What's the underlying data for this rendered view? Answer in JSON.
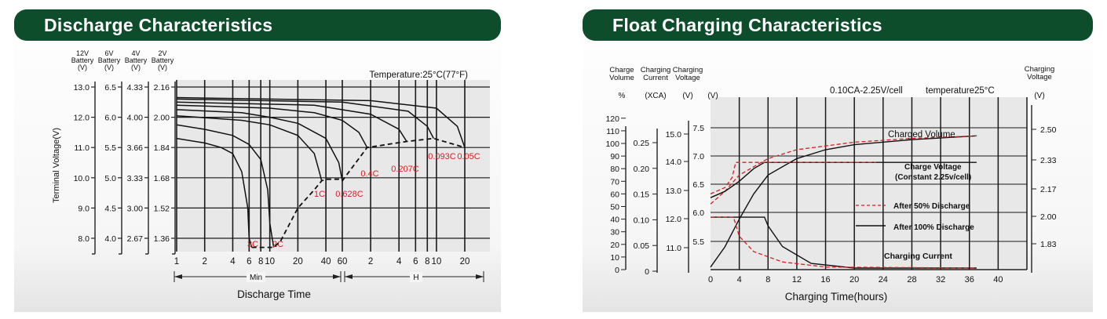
{
  "colors": {
    "banner": "#0e4d2c",
    "grid": "#1a1a1a",
    "plot_bg": "#e8e8e8",
    "red": "#d42020"
  },
  "discharge": {
    "title": "Discharge Characteristics",
    "temperature_label": "Temperature:25°C(77°F)",
    "y_axes": [
      {
        "label": "12V\nBattery\n(V)",
        "ticks": [
          "13.0",
          "12.0",
          "11.0",
          "10.0",
          "9.0",
          "8.0"
        ]
      },
      {
        "label": "6V\nBattery\n(V)",
        "ticks": [
          "6.5",
          "6.0",
          "5.5",
          "5.0",
          "4.5",
          "4.0"
        ]
      },
      {
        "label": "4V\nBattery\n(V)",
        "ticks": [
          "4.33",
          "4.00",
          "3.66",
          "3.33",
          "3.00",
          "2.67"
        ]
      },
      {
        "label": "2V\nBattery\n(V)",
        "ticks": [
          "2.16",
          "2.00",
          "1.84",
          "1.68",
          "1.52",
          "1.36"
        ]
      }
    ],
    "ylabel": "Terminal Voltage(V)",
    "xlabel": "Discharge Time",
    "x_ticks": [
      "1",
      "2",
      "4",
      "6",
      "8",
      "10",
      "20",
      "40",
      "60",
      "2",
      "4",
      "6",
      "8",
      "10",
      "20"
    ],
    "x_groups": [
      "Min",
      "H"
    ]
  },
  "float": {
    "title": "Float Charging Characteristics",
    "condition_label": "0.10CA-2.25V/cell",
    "temperature_label": "temperature25°C",
    "xlabel": "Charging Time(hours)",
    "x_ticks": [
      "0",
      "4",
      "8",
      "12",
      "16",
      "20",
      "24",
      "28",
      "32",
      "36",
      "40"
    ],
    "axis_headers": [
      {
        "title": "Charge\nVolume",
        "unit": "%"
      },
      {
        "title": "Charging\nCurrent",
        "unit": "(XCA)"
      },
      {
        "title": "Charging\nVoltage",
        "unit": "(V)"
      },
      {
        "title": "",
        "unit": "(V)"
      },
      {
        "title": "Charging\nVoltage",
        "unit": "(V)"
      }
    ],
    "volume_ticks": [
      "0",
      "10",
      "20",
      "30",
      "40",
      "50",
      "60",
      "70",
      "80",
      "90",
      "100",
      "110",
      "120"
    ],
    "current_ticks": [
      "0",
      "0.05",
      "0.10",
      "0.15",
      "0.20",
      "0.25"
    ],
    "voltage_ticks_a": [
      "11.0",
      "12.0",
      "13.0",
      "14.0",
      "15.0"
    ],
    "voltage_ticks_b": [
      "5.5",
      "6.0",
      "6.5",
      "7.0",
      "7.5"
    ],
    "voltage_ticks_right": [
      "1.83",
      "2.00",
      "2.17",
      "2.33",
      "2.50"
    ],
    "labels": {
      "charged_volume": "Charged Volume",
      "charge_voltage": "Charge Voltage",
      "charge_voltage_sub": "(Constant 2.25v/cell)",
      "after50": "After 50% Discharge",
      "after100": "After 100% Discharge",
      "charging_current": "Charging Current"
    }
  },
  "chart_data": [
    {
      "type": "line",
      "title": "Discharge Characteristics",
      "xlabel": "Discharge Time",
      "ylabel": "Terminal Voltage(V)",
      "x_scale": "log",
      "x_unit": "minutes",
      "ylim": [
        7.0,
        13.0
      ],
      "series": [
        {
          "name": "3C",
          "x": [
            1,
            2,
            3,
            4,
            5,
            5.8,
            6,
            6.4
          ],
          "y": [
            11.3,
            11.15,
            11.0,
            10.8,
            10.2,
            9.0,
            8.0,
            7.7
          ]
        },
        {
          "name": "2C",
          "x": [
            1,
            2,
            4,
            6,
            8,
            9.5,
            10,
            11
          ],
          "y": [
            11.75,
            11.6,
            11.4,
            11.1,
            10.6,
            9.6,
            8.5,
            7.7
          ]
        },
        {
          "name": "1C",
          "x": [
            1,
            5,
            10,
            20,
            30,
            34,
            36
          ],
          "y": [
            12.05,
            11.9,
            11.75,
            11.4,
            10.8,
            10.2,
            9.9
          ]
        },
        {
          "name": "0.628C",
          "x": [
            1,
            5,
            10,
            20,
            40,
            55,
            60
          ],
          "y": [
            12.25,
            12.15,
            12.0,
            11.8,
            11.3,
            10.5,
            9.9
          ]
        },
        {
          "name": "0.4C",
          "x": [
            1,
            10,
            30,
            60,
            90,
            110
          ],
          "y": [
            12.4,
            12.3,
            12.15,
            11.9,
            11.5,
            11.0
          ]
        },
        {
          "name": "0.207C",
          "x": [
            1,
            30,
            120,
            240,
            290
          ],
          "y": [
            12.5,
            12.4,
            12.1,
            11.6,
            11.2
          ]
        },
        {
          "name": "0.093C",
          "x": [
            1,
            60,
            300,
            480,
            560
          ],
          "y": [
            12.6,
            12.5,
            12.2,
            11.7,
            11.3
          ]
        },
        {
          "name": "0.05C",
          "x": [
            1,
            120,
            600,
            1000,
            1200
          ],
          "y": [
            12.65,
            12.55,
            12.3,
            11.7,
            11.0
          ]
        }
      ],
      "cutoff_curve_dashed": {
        "x": [
          6.4,
          11,
          13,
          20,
          30,
          36,
          40,
          55,
          60,
          110,
          290,
          560,
          1200
        ],
        "y": [
          7.7,
          7.7,
          7.9,
          9.0,
          9.6,
          9.9,
          9.95,
          9.95,
          9.9,
          11.0,
          11.2,
          11.3,
          11.0
        ]
      }
    },
    {
      "type": "line",
      "title": "Float Charging Characteristics",
      "xlabel": "Charging Time(hours)",
      "xlim": [
        0,
        40
      ],
      "series": [
        {
          "name": "Charged Volume (After 100% Discharge)",
          "axis": "volume %",
          "x": [
            0,
            2,
            4,
            6,
            8,
            12,
            16,
            20,
            28,
            37
          ],
          "y": [
            2,
            18,
            40,
            60,
            75,
            88,
            95,
            99,
            103,
            106
          ]
        },
        {
          "name": "Charged Volume (After 50% Discharge)",
          "axis": "volume %",
          "x": [
            0,
            2,
            4,
            8,
            12,
            20,
            28,
            37
          ],
          "y": [
            52,
            62,
            75,
            88,
            95,
            101,
            104,
            106
          ]
        },
        {
          "name": "Charge Voltage (After 100% Discharge)",
          "axis": "volume-scale %",
          "x": [
            0,
            2,
            4,
            6,
            7.5,
            10,
            20,
            37
          ],
          "y": [
            57,
            62,
            70,
            80,
            85,
            85,
            85,
            85
          ]
        },
        {
          "name": "Charge Voltage (After 50% Discharge)",
          "axis": "volume-scale %",
          "x": [
            0,
            2,
            3,
            3.5,
            5,
            10,
            23
          ],
          "y": [
            60,
            65,
            73,
            85,
            85,
            85,
            85
          ]
        },
        {
          "name": "Charging Current (After 100% Discharge)",
          "axis": "XCA",
          "x": [
            0,
            7.5,
            8,
            10,
            14,
            20,
            37
          ],
          "y": [
            0.102,
            0.102,
            0.085,
            0.045,
            0.012,
            0.003,
            0.003
          ]
        },
        {
          "name": "Charging Current (After 50% Discharge)",
          "axis": "XCA",
          "x": [
            0,
            3.2,
            4,
            6,
            10,
            16,
            37
          ],
          "y": [
            0.102,
            0.102,
            0.065,
            0.035,
            0.015,
            0.005,
            0.003
          ]
        }
      ]
    }
  ]
}
